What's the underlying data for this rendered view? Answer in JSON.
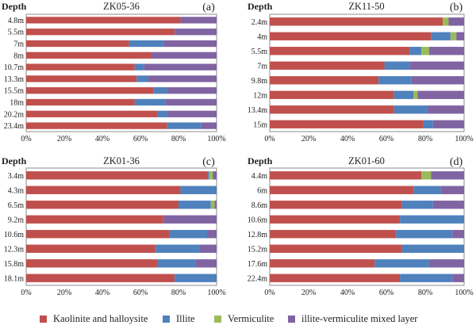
{
  "legend": {
    "entries": [
      {
        "label": "Kaolinite and halloysite",
        "color": "#c0504d"
      },
      {
        "label": "Illite",
        "color": "#4f81bd"
      },
      {
        "label": "Vermiculite",
        "color": "#9bbb59"
      },
      {
        "label": "illite-vermiculite mixed layer",
        "color": "#8064a2"
      }
    ]
  },
  "chart_data": [
    {
      "type": "bar",
      "orientation": "horizontal",
      "stacked": true,
      "title": "ZK05-36",
      "panel_label": "(a)",
      "axis_label": "Depth",
      "xlim": [
        0,
        100
      ],
      "x_ticks": [
        "0%",
        "20%",
        "40%",
        "60%",
        "80%",
        "100%"
      ],
      "categories": [
        "4.8m",
        "5.5m",
        "7m",
        "8m",
        "10.7m",
        "13.3m",
        "15.5m",
        "18m",
        "20.2m",
        "23.4m"
      ],
      "series": [
        {
          "name": "Kaolinite and halloysite",
          "values": [
            81,
            78,
            54,
            66,
            57,
            58,
            67,
            57,
            69,
            74
          ]
        },
        {
          "name": "Illite",
          "values": [
            0,
            0,
            18,
            0,
            5,
            6,
            7,
            16,
            5,
            18
          ]
        },
        {
          "name": "Vermiculite",
          "values": [
            0,
            0,
            0,
            0,
            0,
            0,
            0,
            0,
            0,
            0
          ]
        },
        {
          "name": "illite-vermiculite mixed layer",
          "values": [
            19,
            22,
            28,
            34,
            38,
            36,
            26,
            27,
            26,
            8
          ]
        }
      ]
    },
    {
      "type": "bar",
      "orientation": "horizontal",
      "stacked": true,
      "title": "ZK11-50",
      "panel_label": "(b)",
      "axis_label": "Depth",
      "xlim": [
        0,
        100
      ],
      "x_ticks": [
        "0%",
        "20%",
        "40%",
        "60%",
        "80%",
        "100%"
      ],
      "categories": [
        "2.4m",
        "4m",
        "5.5m",
        "7m",
        "9.8m",
        "12m",
        "13.4m",
        "15m"
      ],
      "series": [
        {
          "name": "Kaolinite and halloysite",
          "values": [
            89,
            83,
            72,
            59,
            56,
            64,
            64,
            79
          ]
        },
        {
          "name": "Illite",
          "values": [
            0,
            10,
            6,
            13,
            17,
            10,
            17,
            5
          ]
        },
        {
          "name": "Vermiculite",
          "values": [
            3,
            3,
            4,
            0,
            0,
            2,
            0,
            0
          ]
        },
        {
          "name": "illite-vermiculite mixed layer",
          "values": [
            8,
            4,
            18,
            28,
            27,
            24,
            19,
            16
          ]
        }
      ]
    },
    {
      "type": "bar",
      "orientation": "horizontal",
      "stacked": true,
      "title": "ZK01-36",
      "panel_label": "(c)",
      "axis_label": "Depth",
      "xlim": [
        0,
        100
      ],
      "x_ticks": [
        "0%",
        "20%",
        "40%",
        "60%",
        "80%",
        "100%"
      ],
      "categories": [
        "3.4m",
        "4.3m",
        "6.5m",
        "9.2m",
        "10.6m",
        "12.3m",
        "15.8m",
        "18.1m"
      ],
      "series": [
        {
          "name": "Kaolinite and halloysite",
          "values": [
            95,
            81,
            80,
            72,
            75,
            68,
            69,
            78
          ]
        },
        {
          "name": "Illite",
          "values": [
            1,
            19,
            17,
            0,
            20,
            23,
            20,
            22
          ]
        },
        {
          "name": "Vermiculite",
          "values": [
            2,
            0,
            2,
            0,
            0,
            0,
            0,
            0
          ]
        },
        {
          "name": "illite-vermiculite mixed layer",
          "values": [
            2,
            0,
            1,
            28,
            5,
            9,
            11,
            0
          ]
        }
      ]
    },
    {
      "type": "bar",
      "orientation": "horizontal",
      "stacked": true,
      "title": "ZK01-60",
      "panel_label": "(d)",
      "axis_label": "Depth",
      "xlim": [
        0,
        100
      ],
      "x_ticks": [
        "0%",
        "20%",
        "40%",
        "60%",
        "80%",
        "100%"
      ],
      "categories": [
        "4.4m",
        "6m",
        "8.6m",
        "10.6m",
        "12.8m",
        "15.2m",
        "17.6m",
        "22.4m"
      ],
      "series": [
        {
          "name": "Kaolinite and halloysite",
          "values": [
            78,
            74,
            68,
            67,
            65,
            68,
            54,
            67
          ]
        },
        {
          "name": "Illite",
          "values": [
            0,
            14,
            16,
            33,
            29,
            32,
            28,
            27
          ]
        },
        {
          "name": "Vermiculite",
          "values": [
            5,
            0,
            0,
            0,
            0,
            0,
            0,
            0
          ]
        },
        {
          "name": "illite-vermiculite mixed layer",
          "values": [
            17,
            12,
            16,
            0,
            6,
            0,
            18,
            6
          ]
        }
      ]
    }
  ]
}
